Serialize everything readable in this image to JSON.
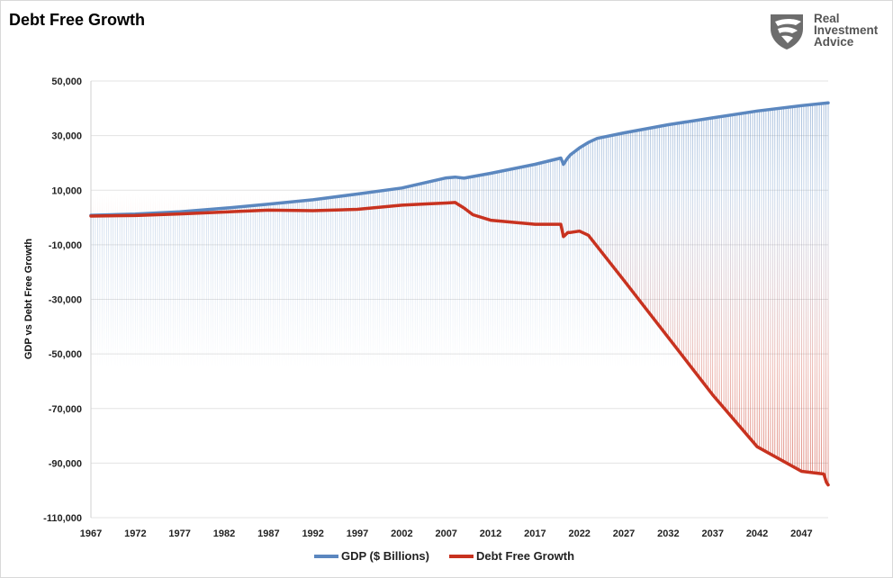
{
  "header": {
    "title": "Debt Free Growth"
  },
  "logo": {
    "name": "shield-eagle-logo",
    "line1": "Real",
    "line2": "Investment",
    "line3": "Advice"
  },
  "colors": {
    "gdp": "#5b87bf",
    "debt_free": "#c8321f",
    "grid": "#e3e3e3",
    "axis": "#d0d0d0"
  },
  "chart_data": {
    "type": "line",
    "title": "Debt Free Growth",
    "xlabel": "",
    "ylabel": "GDP vs Debt Free Growth",
    "xlim": [
      1967,
      2050
    ],
    "ylim": [
      -110000,
      50000
    ],
    "y_ticks": [
      50000,
      30000,
      10000,
      -10000,
      -30000,
      -50000,
      -70000,
      -90000,
      -110000
    ],
    "y_tick_labels": [
      "50,000",
      "30,000",
      "10,000",
      "-10,000",
      "-30,000",
      "-50,000",
      "-70,000",
      "-90,000",
      "-110,000"
    ],
    "x_tick_labels": [
      "1967",
      "1972",
      "1977",
      "1982",
      "1987",
      "1992",
      "1997",
      "2002",
      "2007",
      "2012",
      "2017",
      "2022",
      "2027",
      "2032",
      "2037",
      "2042",
      "2047"
    ],
    "grid": "horizontal",
    "legend_position": "bottom",
    "series": [
      {
        "name": "GDP ($ Billions)",
        "color": "#5b87bf",
        "x": [
          1967,
          1972,
          1977,
          1982,
          1987,
          1992,
          1997,
          2002,
          2007,
          2008,
          2009,
          2012,
          2017,
          2019.9,
          2020.2,
          2020.6,
          2021,
          2022,
          2023,
          2024,
          2027,
          2032,
          2037,
          2042,
          2047,
          2050
        ],
        "y": [
          800,
          1250,
          2100,
          3400,
          4900,
          6500,
          8600,
          10800,
          14500,
          14800,
          14400,
          16200,
          19500,
          21800,
          19500,
          21500,
          23000,
          25500,
          27500,
          29000,
          31000,
          34000,
          36500,
          39000,
          41000,
          42000
        ]
      },
      {
        "name": "Debt Free Growth",
        "color": "#c8321f",
        "x": [
          1967,
          1972,
          1977,
          1982,
          1987,
          1992,
          1997,
          2002,
          2005,
          2007,
          2008,
          2009,
          2010,
          2012,
          2017,
          2019.9,
          2020.2,
          2020.7,
          2021,
          2022,
          2023,
          2027,
          2032,
          2037,
          2042,
          2047,
          2049.5,
          2049.8,
          2050
        ],
        "y": [
          500,
          700,
          1300,
          2000,
          2700,
          2500,
          3000,
          4500,
          5000,
          5300,
          5500,
          3500,
          1000,
          -1000,
          -2500,
          -2500,
          -7000,
          -5500,
          -5500,
          -5000,
          -6500,
          -23000,
          -44000,
          -65000,
          -84000,
          -93000,
          -94000,
          -97000,
          -98000
        ]
      }
    ]
  }
}
